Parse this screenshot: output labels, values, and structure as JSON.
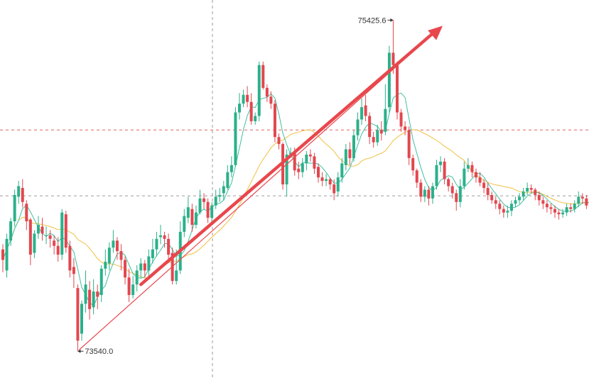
{
  "chart_data": {
    "type": "candlestick",
    "title": "",
    "xlabel": "",
    "ylabel": "",
    "ylim": [
      73440,
      75500
    ],
    "grid": false,
    "annotations": {
      "high_label": "75425.6",
      "low_label": "73540.0",
      "trend_arrow": {
        "from": [
          19,
          73540
        ],
        "to": [
          111,
          75425.6
        ]
      }
    },
    "reference_lines": [
      74800,
      74425
    ],
    "series": [
      {
        "name": "",
        "kind": "candles",
        "values": [
          [
            74120,
            74060,
            74150,
            73990
          ],
          [
            74000,
            74180,
            74210,
            73960
          ],
          [
            74170,
            74280,
            74300,
            74140
          ],
          [
            74280,
            74430,
            74460,
            74250
          ],
          [
            74420,
            74480,
            74510,
            74380
          ],
          [
            74470,
            74390,
            74520,
            74360
          ],
          [
            74380,
            74280,
            74400,
            74230
          ],
          [
            74290,
            74090,
            74300,
            74030
          ],
          [
            74100,
            74210,
            74230,
            74070
          ],
          [
            74210,
            74260,
            74310,
            74180
          ],
          [
            74250,
            74210,
            74300,
            74170
          ],
          [
            74200,
            74200,
            74250,
            74150
          ],
          [
            74200,
            74180,
            74230,
            74130
          ],
          [
            74170,
            74140,
            74200,
            74090
          ],
          [
            74140,
            74090,
            74190,
            74050
          ],
          [
            74090,
            74330,
            74350,
            74060
          ],
          [
            74320,
            74130,
            74340,
            74100
          ],
          [
            74140,
            74000,
            74170,
            73960
          ],
          [
            74020,
            73980,
            74070,
            73900
          ],
          [
            73900,
            73600,
            73920,
            73540
          ],
          [
            73640,
            73810,
            73830,
            73600
          ],
          [
            73810,
            73920,
            74000,
            73760
          ],
          [
            73890,
            73780,
            73940,
            73720
          ],
          [
            73790,
            73880,
            73950,
            73750
          ],
          [
            73880,
            73850,
            73920,
            73780
          ],
          [
            73860,
            74010,
            74030,
            73820
          ],
          [
            74010,
            74050,
            74120,
            73970
          ],
          [
            74040,
            74130,
            74160,
            74000
          ],
          [
            74130,
            74170,
            74230,
            74100
          ],
          [
            74170,
            74110,
            74190,
            74060
          ],
          [
            74110,
            74060,
            74150,
            74000
          ],
          [
            74060,
            73960,
            74080,
            73920
          ],
          [
            73960,
            73860,
            74010,
            73820
          ],
          [
            73860,
            73920,
            73970,
            73840
          ],
          [
            73920,
            74000,
            74030,
            73880
          ],
          [
            74000,
            74040,
            74070,
            73960
          ],
          [
            74040,
            74000,
            74060,
            73960
          ],
          [
            74000,
            74080,
            74120,
            73970
          ],
          [
            74070,
            74120,
            74180,
            74040
          ],
          [
            74120,
            74180,
            74220,
            74080
          ],
          [
            74190,
            74200,
            74260,
            74150
          ],
          [
            74200,
            74180,
            74220,
            74130
          ],
          [
            74180,
            74090,
            74210,
            74050
          ],
          [
            74100,
            73940,
            74130,
            73920
          ],
          [
            73940,
            74000,
            74120,
            73920
          ],
          [
            74000,
            74220,
            74280,
            73980
          ],
          [
            74220,
            74310,
            74350,
            74190
          ],
          [
            74300,
            74360,
            74420,
            74270
          ],
          [
            74350,
            74260,
            74380,
            74220
          ],
          [
            74260,
            74330,
            74370,
            74240
          ],
          [
            74330,
            74410,
            74460,
            74320
          ],
          [
            74410,
            74390,
            74440,
            74350
          ],
          [
            74390,
            74300,
            74410,
            74270
          ],
          [
            74300,
            74370,
            74390,
            74270
          ],
          [
            74370,
            74420,
            74460,
            74350
          ],
          [
            74420,
            74430,
            74470,
            74390
          ],
          [
            74440,
            74480,
            74510,
            74400
          ],
          [
            74470,
            74560,
            74600,
            74460
          ],
          [
            74560,
            74600,
            74650,
            74530
          ],
          [
            74600,
            74900,
            74930,
            74590
          ],
          [
            74900,
            74950,
            75010,
            74860
          ],
          [
            74950,
            75000,
            75030,
            74930
          ],
          [
            75000,
            74960,
            75050,
            74930
          ],
          [
            74960,
            74850,
            75010,
            74830
          ],
          [
            74850,
            74880,
            74900,
            74830
          ],
          [
            74880,
            75170,
            75190,
            74850
          ],
          [
            75170,
            75040,
            75190,
            75030
          ],
          [
            75040,
            74990,
            75060,
            74960
          ],
          [
            74990,
            74950,
            75020,
            74920
          ],
          [
            74950,
            74760,
            74970,
            74730
          ],
          [
            74760,
            74720,
            74780,
            74690
          ],
          [
            74720,
            74490,
            74730,
            74460
          ],
          [
            74490,
            74660,
            74690,
            74420
          ],
          [
            74660,
            74670,
            74700,
            74640
          ],
          [
            74670,
            74570,
            74700,
            74540
          ],
          [
            74580,
            74560,
            74620,
            74520
          ],
          [
            74560,
            74610,
            74640,
            74530
          ],
          [
            74610,
            74660,
            74680,
            74570
          ],
          [
            74660,
            74650,
            74690,
            74620
          ],
          [
            74650,
            74580,
            74670,
            74550
          ],
          [
            74590,
            74530,
            74610,
            74500
          ],
          [
            74530,
            74510,
            74560,
            74480
          ],
          [
            74510,
            74520,
            74550,
            74480
          ],
          [
            74520,
            74490,
            74530,
            74460
          ],
          [
            74490,
            74440,
            74520,
            74400
          ],
          [
            74450,
            74530,
            74560,
            74420
          ],
          [
            74530,
            74610,
            74640,
            74500
          ],
          [
            74600,
            74690,
            74720,
            74570
          ],
          [
            74690,
            74640,
            74730,
            74600
          ],
          [
            74640,
            74770,
            74800,
            74620
          ],
          [
            74770,
            74860,
            74900,
            74740
          ],
          [
            74860,
            74930,
            74980,
            74830
          ],
          [
            74940,
            74880,
            75000,
            74850
          ],
          [
            74880,
            74760,
            74900,
            74720
          ],
          [
            74760,
            74730,
            74790,
            74700
          ],
          [
            74730,
            74800,
            74830,
            74710
          ],
          [
            74800,
            74780,
            74850,
            74740
          ],
          [
            74790,
            74920,
            75060,
            74770
          ],
          [
            74930,
            75240,
            75280,
            74900
          ],
          [
            75240,
            75170,
            75425.6,
            75120
          ],
          [
            75170,
            74900,
            75190,
            74860
          ],
          [
            74900,
            74820,
            74920,
            74790
          ],
          [
            74820,
            74800,
            74850,
            74770
          ],
          [
            74800,
            74640,
            74820,
            74600
          ],
          [
            74640,
            74570,
            74660,
            74540
          ],
          [
            74570,
            74500,
            74580,
            74470
          ],
          [
            74500,
            74420,
            74520,
            74390
          ],
          [
            74420,
            74460,
            74480,
            74390
          ],
          [
            74460,
            74410,
            74480,
            74370
          ],
          [
            74410,
            74480,
            74500,
            74380
          ],
          [
            74480,
            74600,
            74630,
            74460
          ],
          [
            74600,
            74620,
            74650,
            74560
          ],
          [
            74620,
            74520,
            74640,
            74490
          ],
          [
            74520,
            74480,
            74530,
            74450
          ],
          [
            74480,
            74440,
            74500,
            74410
          ],
          [
            74440,
            74390,
            74460,
            74340
          ],
          [
            74390,
            74480,
            74520,
            74360
          ],
          [
            74480,
            74580,
            74620,
            74460
          ],
          [
            74580,
            74600,
            74640,
            74560
          ],
          [
            74600,
            74560,
            74620,
            74530
          ],
          [
            74560,
            74530,
            74580,
            74500
          ],
          [
            74530,
            74500,
            74560,
            74480
          ],
          [
            74500,
            74470,
            74520,
            74440
          ],
          [
            74470,
            74430,
            74500,
            74400
          ],
          [
            74430,
            74400,
            74450,
            74380
          ],
          [
            74400,
            74380,
            74420,
            74350
          ],
          [
            74380,
            74350,
            74400,
            74320
          ],
          [
            74350,
            74330,
            74370,
            74300
          ],
          [
            74330,
            74340,
            74370,
            74300
          ],
          [
            74340,
            74380,
            74400,
            74310
          ],
          [
            74380,
            74400,
            74420,
            74360
          ],
          [
            74400,
            74420,
            74440,
            74380
          ],
          [
            74420,
            74450,
            74470,
            74400
          ],
          [
            74450,
            74470,
            74500,
            74430
          ],
          [
            74470,
            74460,
            74490,
            74440
          ],
          [
            74460,
            74430,
            74470,
            74400
          ],
          [
            74430,
            74400,
            74450,
            74370
          ],
          [
            74400,
            74380,
            74420,
            74350
          ],
          [
            74380,
            74360,
            74400,
            74330
          ],
          [
            74360,
            74350,
            74380,
            74320
          ],
          [
            74350,
            74330,
            74370,
            74300
          ],
          [
            74330,
            74320,
            74350,
            74290
          ],
          [
            74320,
            74330,
            74350,
            74300
          ],
          [
            74330,
            74360,
            74380,
            74310
          ],
          [
            74360,
            74350,
            74380,
            74330
          ],
          [
            74350,
            74380,
            74400,
            74330
          ],
          [
            74380,
            74420,
            74450,
            74360
          ],
          [
            74420,
            74410,
            74440,
            74380
          ],
          [
            74410,
            74370,
            74430,
            74350
          ],
          [
            74370,
            74350,
            74390,
            74320
          ],
          [
            74350,
            74330,
            74370,
            74300
          ],
          [
            74330,
            74300,
            74350,
            74280
          ],
          [
            74300,
            74290,
            74320,
            74260
          ],
          [
            74290,
            74310,
            74340,
            74270
          ],
          [
            74310,
            74350,
            74370,
            74290
          ],
          [
            74350,
            74340,
            74380,
            74320
          ],
          [
            74340,
            74320,
            74360,
            74300
          ],
          [
            74320,
            74300,
            74340,
            74280
          ],
          [
            74300,
            74280,
            74320,
            74250
          ],
          [
            74280,
            74260,
            74300,
            74240
          ]
        ]
      },
      {
        "name": "",
        "kind": "ma-short",
        "color": "#3fbfa0"
      },
      {
        "name": "",
        "kind": "ma-long",
        "color": "#f0c040"
      }
    ],
    "colors": {
      "up": "#2bb08a",
      "down": "#e2474f",
      "arrow": "#e8474d",
      "ref_line": "#e06060",
      "crosshair": "#9a9a9a"
    }
  }
}
